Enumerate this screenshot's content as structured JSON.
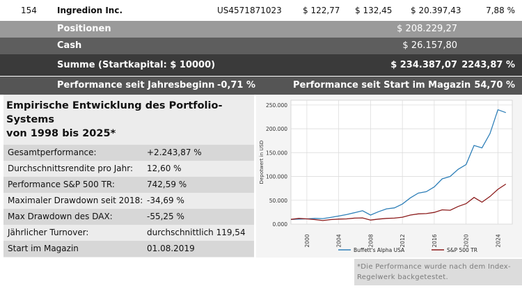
{
  "holding_row": {
    "number": "154",
    "name": "Ingredion Inc.",
    "isin": "US4571871023",
    "price1": "$ 122,77",
    "price2": "$ 132,45",
    "value": "$ 20.397,43",
    "weight": "7,88 %"
  },
  "totals": {
    "positions_label": "Positionen",
    "positions_value": "$ 208.229,27",
    "cash_label": "Cash",
    "cash_value": "$ 26.157,80",
    "sum_label": "Summe (Startkapital: $ 10000)",
    "sum_value": "$ 234.387,07",
    "sum_pct": "2243,87 %"
  },
  "performance": {
    "ytd_label": "Performance seit Jahresbeginn",
    "ytd_value": "-0,71 %",
    "since_label": "Performance seit Start im Magazin",
    "since_value": "54,70 %"
  },
  "panel": {
    "heading_line1": "Empirische Entwicklung des Portfolio-Systems",
    "heading_line2": "von 1998 bis 2025*",
    "stats": [
      {
        "label": "Gesamtperformance:",
        "value": "+2.243,87 %"
      },
      {
        "label": "Durchschnittsrendite pro Jahr:",
        "value": "12,60 %"
      },
      {
        "label": "Performance S&P 500 TR:",
        "value": "742,59 %"
      },
      {
        "label": "Maximaler Drawdown seit 2018:",
        "value": "-34,69 %"
      },
      {
        "label": "Max Drawdown des DAX:",
        "value": "-55,25 %"
      },
      {
        "label": "Jährlicher Turnover:",
        "value": "durchschnittlich 119,54 %"
      },
      {
        "label": "Start im Magazin",
        "value": "01.08.2019"
      }
    ]
  },
  "footnote": "*Die Performance wurde nach dem Index-Regelwerk backgetestet.",
  "colors": {
    "series1": "#2e7fb8",
    "series2": "#8b1a1a"
  },
  "chart_data": {
    "type": "line",
    "ylabel": "Depotwert in USD",
    "xlabel": "",
    "xlim": [
      1998,
      2025.8
    ],
    "ylim": [
      0,
      260000
    ],
    "xticks": [
      "2000",
      "2004",
      "2008",
      "2012",
      "2016",
      "2020",
      "2024"
    ],
    "yticks": [
      "0.000",
      "50.000",
      "100.000",
      "150.000",
      "200.000",
      "250.000"
    ],
    "legend": "bottom",
    "grid": true,
    "series": [
      {
        "name": "Buffett's Alpha USA",
        "x": [
          1998,
          1999,
          2000,
          2001,
          2002,
          2003,
          2004,
          2005,
          2006,
          2007,
          2008,
          2009,
          2010,
          2011,
          2012,
          2013,
          2014,
          2015,
          2016,
          2017,
          2018,
          2019,
          2020,
          2021,
          2022,
          2023,
          2024,
          2025
        ],
        "y": [
          10000,
          10500,
          11000,
          12000,
          11500,
          14000,
          17000,
          20000,
          24000,
          28000,
          19000,
          26000,
          32000,
          34000,
          42000,
          55000,
          65000,
          68000,
          78000,
          95000,
          100000,
          115000,
          125000,
          165000,
          160000,
          190000,
          240000,
          234000
        ]
      },
      {
        "name": "S&P 500 TR",
        "x": [
          1998,
          1999,
          2000,
          2001,
          2002,
          2003,
          2004,
          2005,
          2006,
          2007,
          2008,
          2009,
          2010,
          2011,
          2012,
          2013,
          2014,
          2015,
          2016,
          2017,
          2018,
          2019,
          2020,
          2021,
          2022,
          2023,
          2024,
          2025
        ],
        "y": [
          10000,
          12000,
          11000,
          9500,
          7500,
          9500,
          10500,
          11000,
          12500,
          13000,
          8500,
          10500,
          12000,
          12500,
          14500,
          19000,
          21500,
          22000,
          24500,
          30000,
          29000,
          37000,
          43000,
          56000,
          46000,
          58000,
          73000,
          84000
        ]
      }
    ]
  }
}
